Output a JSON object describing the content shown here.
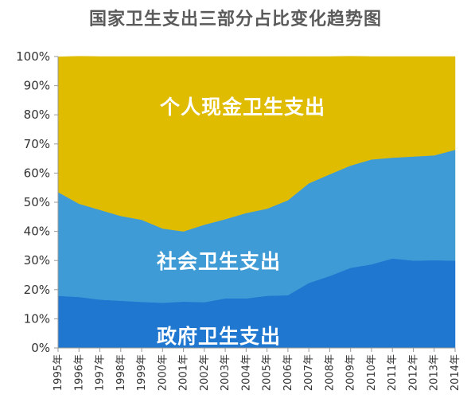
{
  "chart_data": {
    "type": "area",
    "stacked": true,
    "title": "国家卫生支出三部分占比变化趋势图",
    "categories": [
      "1995年",
      "1996年",
      "1997年",
      "1998年",
      "1999年",
      "2000年",
      "2001年",
      "2002年",
      "2003年",
      "2004年",
      "2005年",
      "2006年",
      "2007年",
      "2008年",
      "2009年",
      "2010年",
      "2011年",
      "2012年",
      "2013年",
      "2014年"
    ],
    "y_ticks": [
      "0%",
      "10%",
      "20%",
      "30%",
      "40%",
      "50%",
      "60%",
      "70%",
      "80%",
      "90%",
      "100%"
    ],
    "ylim": [
      0,
      100
    ],
    "grid": false,
    "legend": "none",
    "series": [
      {
        "name": "政府卫生支出",
        "color": "#1f77d0",
        "values": [
          17.9,
          17.5,
          16.6,
          16.2,
          15.8,
          15.5,
          15.9,
          15.7,
          17.0,
          17.0,
          17.9,
          18.1,
          22.3,
          24.7,
          27.5,
          28.7,
          30.7,
          30.0,
          30.1,
          30.0
        ]
      },
      {
        "name": "社会卫生支出",
        "color": "#3f9bd6",
        "values": [
          35.6,
          32.0,
          30.8,
          29.1,
          28.2,
          25.5,
          24.1,
          26.6,
          27.2,
          29.3,
          29.9,
          32.6,
          34.2,
          34.9,
          35.1,
          36.0,
          34.6,
          35.7,
          36.0,
          38.0
        ]
      },
      {
        "name": "个人现金卫生支出",
        "color": "#e0bc00",
        "values": [
          46.4,
          50.6,
          52.6,
          54.7,
          56.0,
          59.0,
          60.0,
          57.7,
          55.8,
          53.7,
          52.2,
          49.3,
          43.5,
          40.4,
          37.5,
          35.3,
          34.7,
          34.3,
          33.9,
          32.0
        ]
      }
    ]
  }
}
